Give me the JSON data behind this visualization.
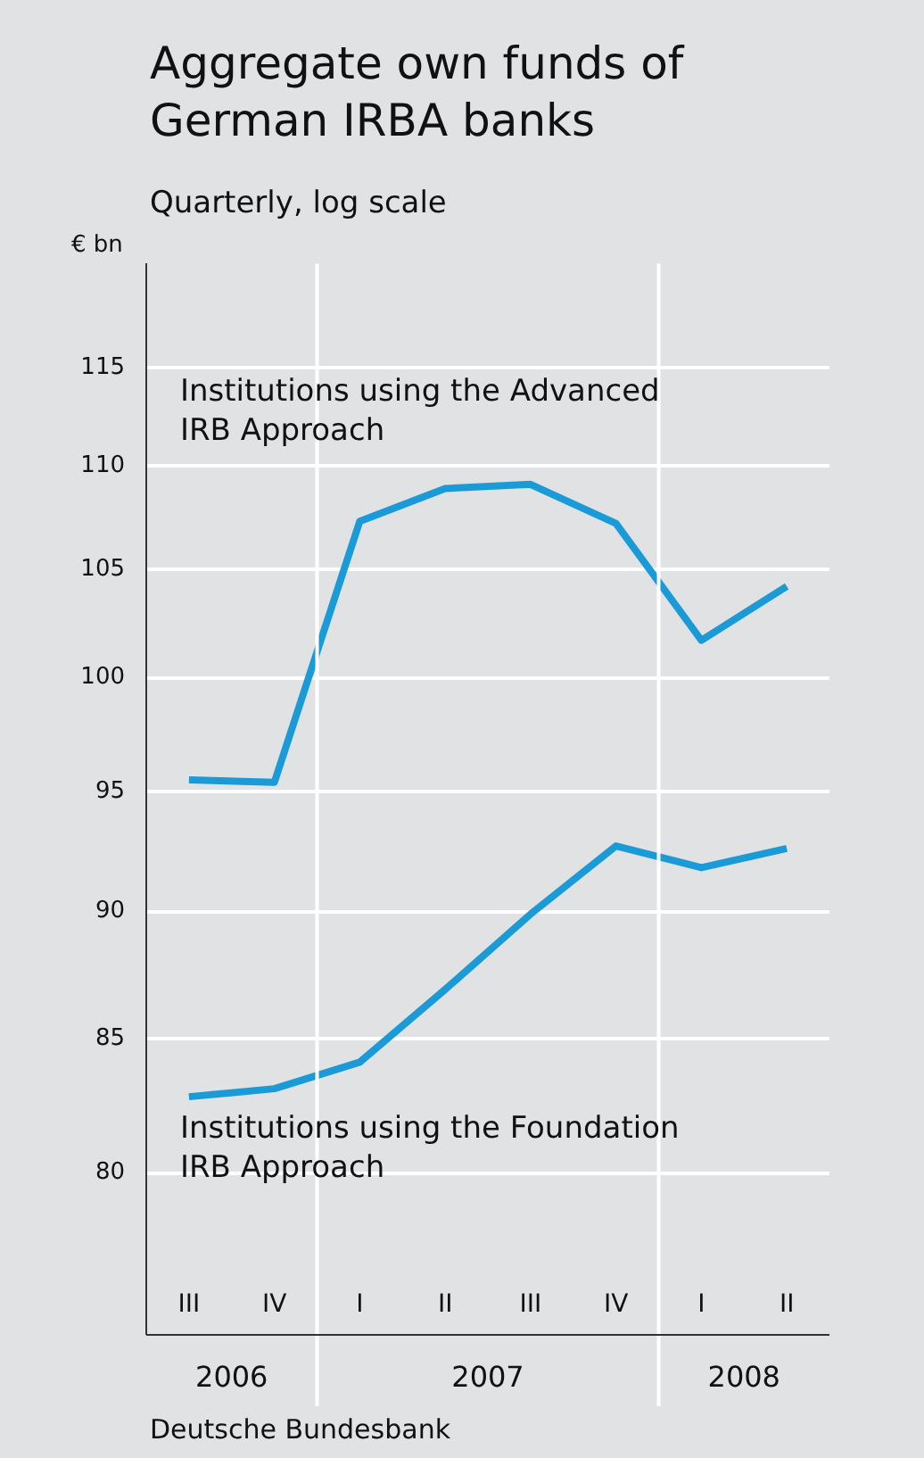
{
  "chart_data": {
    "type": "line",
    "title": "Aggregate own funds of German IRBA banks",
    "subtitle": "Quarterly, log scale",
    "ylabel": "€ bn",
    "categories": [
      "III",
      "IV",
      "I",
      "II",
      "III",
      "IV",
      "I",
      "II"
    ],
    "series": [
      {
        "name": "Institutions using the Advanced IRB Approach",
        "color": "#1a9bd7",
        "values": [
          95.5,
          95.4,
          107.3,
          108.9,
          109.1,
          107.2,
          101.7,
          104.2
        ]
      },
      {
        "name": "Institutions using the Foundation IRB Approach",
        "color": "#1a9bd7",
        "values": [
          82.8,
          83.1,
          84.1,
          86.9,
          89.9,
          92.7,
          91.8,
          92.6
        ]
      }
    ],
    "log": true,
    "ylim": [
      76.5,
      120.5
    ],
    "yticks": [
      80,
      85,
      90,
      95,
      100,
      105,
      110,
      115
    ],
    "grid": "y",
    "annotations": [
      "2006",
      "2007",
      "2008",
      "Deutsche Bundesbank"
    ]
  }
}
